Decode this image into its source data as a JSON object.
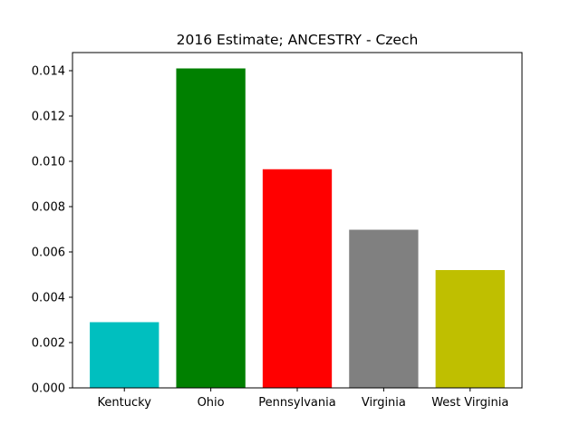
{
  "chart_data": {
    "type": "bar",
    "title": "2016 Estimate; ANCESTRY - Czech",
    "xlabel": "",
    "ylabel": "",
    "categories": [
      " Kentucky",
      " Ohio",
      " Pennsylvania",
      " Virginia",
      " West Virginia"
    ],
    "values": [
      0.0029,
      0.0141,
      0.00965,
      0.00698,
      0.0052
    ],
    "colors": [
      "#00bfbf",
      "#008000",
      "#ff0000",
      "#808080",
      "#bfbf00"
    ],
    "ylim": [
      0,
      0.0148
    ],
    "yticks": [
      "0.000",
      "0.002",
      "0.004",
      "0.006",
      "0.008",
      "0.010",
      "0.012",
      "0.014"
    ],
    "grid": false,
    "legend": "none"
  }
}
